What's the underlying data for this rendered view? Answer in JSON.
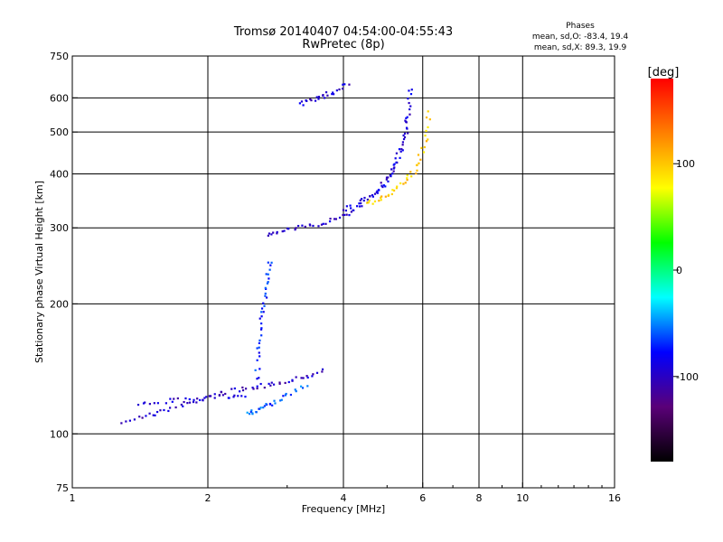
{
  "chart_data": {
    "type": "scatter",
    "title": "Tromsø 20140407 04:54:00-04:55:43",
    "subtitle": "RwPretec (8p)",
    "xlabel": "Frequency [MHz]",
    "ylabel": "Stationary phase Virtual Height [km]",
    "x_scale": "log",
    "y_scale": "log",
    "xlim": [
      1,
      16
    ],
    "ylim": [
      75,
      750
    ],
    "x_ticks": [
      1,
      2,
      4,
      6,
      8,
      10,
      16
    ],
    "x_tick_labels": [
      "1",
      "2",
      "4",
      "6",
      "8",
      "10",
      "16"
    ],
    "y_ticks": [
      75,
      100,
      200,
      300,
      400,
      500,
      600,
      750
    ],
    "y_tick_labels": [
      "75",
      "100",
      "200",
      "300",
      "400",
      "500",
      "600",
      "750"
    ],
    "x_gridlines": [
      2,
      4,
      6,
      8,
      10
    ],
    "y_gridlines": [
      100,
      200,
      300,
      400,
      500,
      600
    ],
    "grid": true,
    "phase_stats": {
      "title": "Phases",
      "line_o": "mean, sd,O: -83.4, 19.4",
      "line_x": "mean, sd,X:  89.3, 19.9"
    },
    "colorbar": {
      "label": "[deg]",
      "range": [
        -180,
        180
      ],
      "ticks": [
        100,
        0,
        -100
      ],
      "tick_labels": [
        "100",
        "0",
        "-100"
      ],
      "colormap": [
        "#000000",
        "#5a0078",
        "#0000ff",
        "#00ffff",
        "#00ff00",
        "#ffff00",
        "#ff8000",
        "#ff0000"
      ]
    },
    "traces": [
      {
        "x": [
          1.3,
          1.45,
          1.6,
          1.8,
          2.0,
          2.25,
          2.5,
          2.75,
          3.0,
          3.3,
          3.6
        ],
        "y": [
          107,
          110,
          113,
          117,
          122,
          126,
          128,
          130,
          133,
          136,
          140
        ],
        "phase": -100
      },
      {
        "x": [
          1.4,
          1.6,
          1.8,
          2.0,
          2.2,
          2.4
        ],
        "y": [
          117,
          119,
          120,
          121,
          122,
          123
        ],
        "phase": -95
      },
      {
        "x": [
          2.45,
          2.55,
          2.65,
          2.8,
          3.0,
          3.3
        ],
        "y": [
          112,
          113,
          115,
          118,
          123,
          130
        ],
        "phase": -60
      },
      {
        "x": [
          2.55,
          2.6,
          2.6,
          2.65,
          2.7,
          2.7,
          2.75
        ],
        "y": [
          130,
          150,
          170,
          190,
          210,
          230,
          250
        ],
        "phase": -70
      },
      {
        "x": [
          2.7,
          2.9,
          3.2,
          3.5,
          3.8,
          4.1,
          4.4,
          4.7,
          5.0,
          5.2,
          5.4,
          5.55
        ],
        "y": [
          290,
          295,
          300,
          305,
          315,
          325,
          340,
          360,
          390,
          420,
          470,
          550
        ],
        "phase": -95
      },
      {
        "x": [
          4.0,
          4.3,
          4.7,
          5.0,
          5.3,
          5.5,
          5.6,
          5.65
        ],
        "y": [
          330,
          340,
          360,
          385,
          430,
          490,
          560,
          630
        ],
        "phase": -90
      },
      {
        "x": [
          4.5,
          4.8,
          5.1,
          5.4,
          5.7,
          5.9,
          6.1,
          6.2
        ],
        "y": [
          340,
          350,
          362,
          380,
          400,
          430,
          480,
          560
        ],
        "phase": 100
      },
      {
        "x": [
          3.2,
          3.4,
          3.6,
          3.8,
          4.1
        ],
        "y": [
          582,
          592,
          605,
          620,
          648
        ],
        "phase": -95
      }
    ]
  }
}
